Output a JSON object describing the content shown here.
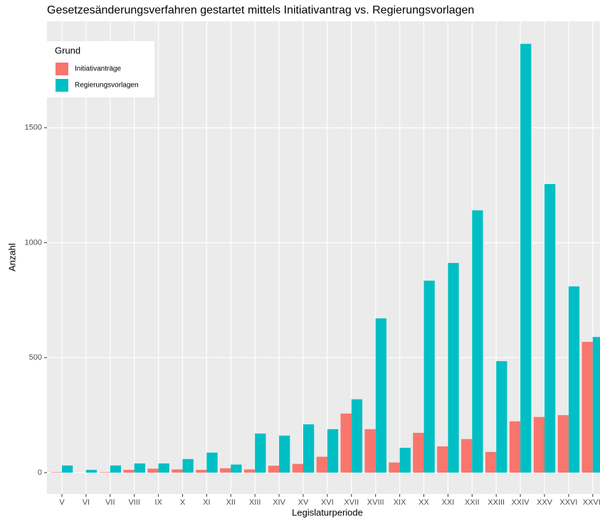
{
  "chart_data": {
    "type": "bar",
    "title": "Gesetzesänderungsverfahren gestartet mittels Initiativantrag vs. Regierungsvorlagen",
    "x_label": "Legislaturperiode",
    "y_label": "Anzahl",
    "categories": [
      "V",
      "VI",
      "VII",
      "VIII",
      "IX",
      "X",
      "XI",
      "XII",
      "XIII",
      "XIV",
      "XV",
      "XVI",
      "XVII",
      "XVIII",
      "XIX",
      "XX",
      "XXI",
      "XXII",
      "XXIII",
      "XXIV",
      "XXV",
      "XXVI",
      "XXVII"
    ],
    "series": [
      {
        "name": "Initiativanträge",
        "color": "#F8766D",
        "values": [
          2,
          0,
          2,
          12,
          17,
          14,
          12,
          19,
          14,
          30,
          38,
          69,
          257,
          189,
          44,
          173,
          114,
          146,
          90,
          223,
          242,
          250,
          569
        ]
      },
      {
        "name": "Regierungsvorlagen",
        "color": "#00BFC4",
        "values": [
          31,
          12,
          31,
          40,
          40,
          59,
          87,
          35,
          170,
          161,
          210,
          189,
          319,
          671,
          108,
          835,
          912,
          1141,
          485,
          1865,
          1255,
          810,
          590
        ]
      }
    ],
    "legend_title": "Grund",
    "legend_position": "top-left",
    "ylim": [
      -93,
      1963
    ],
    "yticks": [
      0,
      500,
      1000,
      1500
    ],
    "grid": true
  }
}
